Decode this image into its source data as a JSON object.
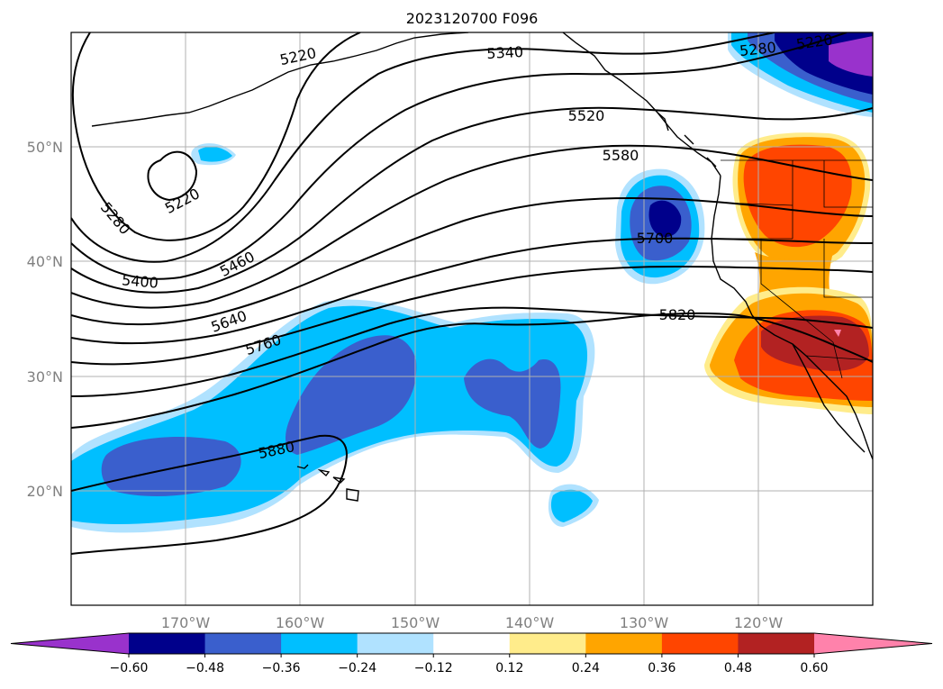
{
  "title": "2023120700 F096",
  "map": {
    "lon_range": [
      -180,
      -110
    ],
    "lat_range": [
      10,
      60
    ],
    "gridlines": true,
    "lat_labels": [
      "20°N",
      "30°N",
      "40°N",
      "50°N"
    ],
    "lon_labels": [
      "170°W",
      "160°W",
      "150°W",
      "140°W",
      "130°W",
      "120°W"
    ],
    "contour_labels": [
      "5220",
      "5340",
      "5280",
      "5220",
      "5520",
      "5580",
      "5220",
      "5280",
      "5700",
      "5400",
      "5460",
      "5640",
      "5760",
      "5820",
      "5880"
    ]
  },
  "colorbar": {
    "orientation": "horizontal",
    "extend": "both",
    "ticks": [
      "−0.60",
      "−0.48",
      "−0.36",
      "−0.24",
      "−0.12",
      "0.12",
      "0.24",
      "0.36",
      "0.48",
      "0.60"
    ],
    "colors": [
      "#9932cc",
      "#00008b",
      "#3a5fcd",
      "#00bfff",
      "#b0e2ff",
      "#ffffff",
      "#ffec8b",
      "#ffa500",
      "#ff4500",
      "#b22222",
      "#ff82ab"
    ]
  }
}
